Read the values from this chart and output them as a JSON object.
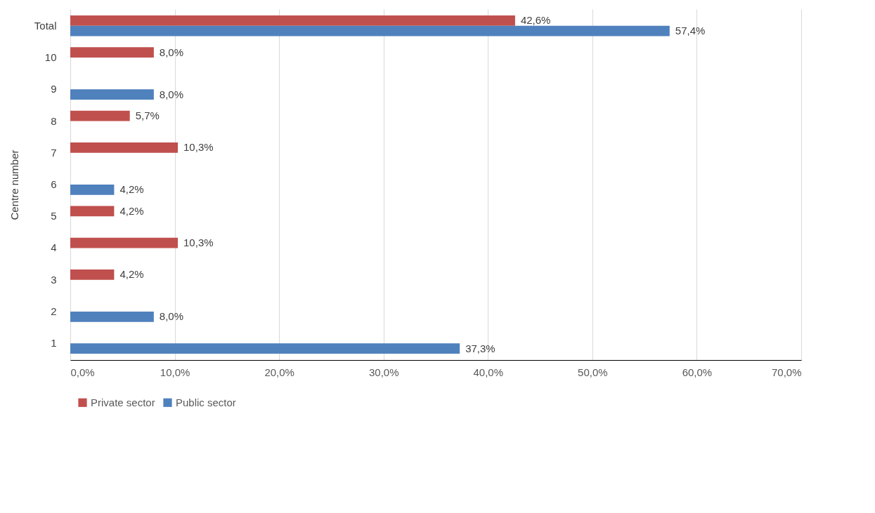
{
  "chart_data": {
    "type": "bar",
    "orientation": "horizontal",
    "ylabel": "Centre number",
    "categories": [
      "Total",
      "10",
      "9",
      "8",
      "7",
      "6",
      "5",
      "4",
      "3",
      "2",
      "1"
    ],
    "series": [
      {
        "name": "Private sector",
        "color": "#c0504d",
        "values": [
          42.6,
          8.0,
          null,
          5.7,
          10.3,
          null,
          4.2,
          10.3,
          4.2,
          null,
          null
        ],
        "value_labels": [
          "42,6%",
          "8,0%",
          null,
          "5,7%",
          "10,3%",
          null,
          "4,2%",
          "10,3%",
          "4,2%",
          null,
          null
        ]
      },
      {
        "name": "Public sector",
        "color": "#4f81bd",
        "values": [
          57.4,
          null,
          8.0,
          null,
          null,
          4.2,
          null,
          null,
          null,
          8.0,
          37.3
        ],
        "value_labels": [
          "57,4%",
          null,
          "8,0%",
          null,
          null,
          "4,2%",
          null,
          null,
          null,
          "8,0%",
          "37,3%"
        ]
      }
    ],
    "xlim": [
      0,
      70
    ],
    "xticks": [
      {
        "value": 0,
        "label": "0,0%"
      },
      {
        "value": 10,
        "label": "10,0%"
      },
      {
        "value": 20,
        "label": "20,0%"
      },
      {
        "value": 30,
        "label": "30,0%"
      },
      {
        "value": 40,
        "label": "40,0%"
      },
      {
        "value": 50,
        "label": "50,0%"
      },
      {
        "value": 60,
        "label": "60,0%"
      },
      {
        "value": 70,
        "label": "70,0%"
      }
    ],
    "grid": "x",
    "legend": "bottom"
  }
}
